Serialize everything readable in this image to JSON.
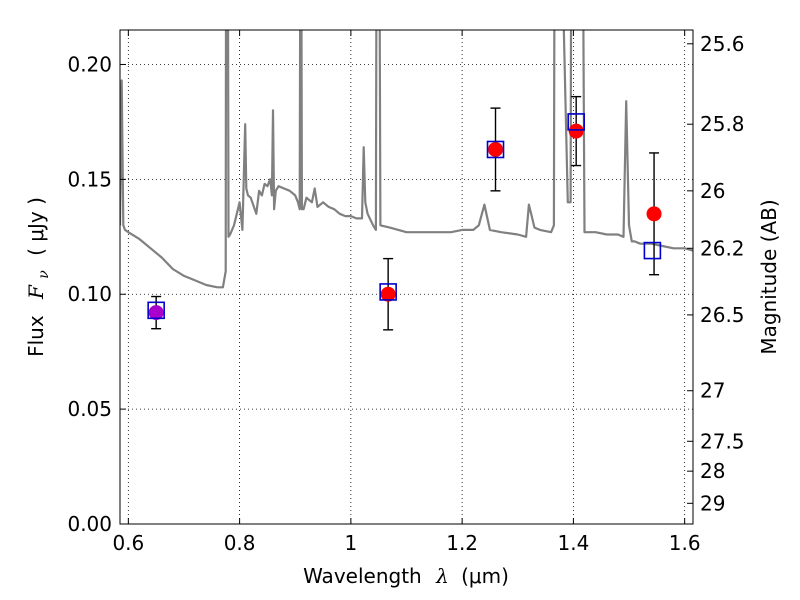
{
  "chart_data": {
    "type": "scatter",
    "xlabel_text": "Wavelength",
    "xlabel_symbol": "λ",
    "xlabel_unit": "(μm)",
    "ylabel_text": "Flux",
    "ylabel_symbol": "F",
    "ylabel_subscript": "ν",
    "ylabel_unit": "( μJy )",
    "y2label": "Magnitude (AB)",
    "xlim": [
      0.585,
      1.615
    ],
    "ylim": [
      0.0,
      0.215
    ],
    "grid": true,
    "x_ticks": [
      0.6,
      0.8,
      1.0,
      1.2,
      1.4,
      1.6
    ],
    "x_tick_labels": [
      "0.6",
      "0.8",
      "1",
      "1.2",
      "1.4",
      "1.6"
    ],
    "y_ticks": [
      0.0,
      0.05,
      0.1,
      0.15,
      0.2
    ],
    "y_tick_labels": [
      "0.00",
      "0.05",
      "0.10",
      "0.15",
      "0.20"
    ],
    "y2_ticks": [
      {
        "label": "25.6",
        "flux": 0.209
      },
      {
        "label": "25.8",
        "flux": 0.174
      },
      {
        "label": "26",
        "flux": 0.145
      },
      {
        "label": "26.2",
        "flux": 0.12
      },
      {
        "label": "26.5",
        "flux": 0.091
      },
      {
        "label": "27",
        "flux": 0.058
      },
      {
        "label": "27.5",
        "flux": 0.036
      },
      {
        "label": "28",
        "flux": 0.023
      },
      {
        "label": "29",
        "flux": 0.009
      }
    ],
    "spectrum": {
      "color": "#808080",
      "x": [
        0.585,
        0.588,
        0.591,
        0.594,
        0.6,
        0.62,
        0.64,
        0.66,
        0.68,
        0.7,
        0.72,
        0.74,
        0.76,
        0.77,
        0.775,
        0.776,
        0.778,
        0.78,
        0.783,
        0.79,
        0.8,
        0.805,
        0.81,
        0.812,
        0.815,
        0.82,
        0.83,
        0.835,
        0.84,
        0.845,
        0.85,
        0.855,
        0.858,
        0.86,
        0.862,
        0.865,
        0.87,
        0.88,
        0.89,
        0.9,
        0.905,
        0.908,
        0.91,
        0.912,
        0.915,
        0.92,
        0.93,
        0.935,
        0.94,
        0.95,
        0.96,
        0.97,
        0.98,
        0.99,
        1.0,
        1.01,
        1.02,
        1.023,
        1.026,
        1.03,
        1.04,
        1.045,
        1.047,
        1.05,
        1.053,
        1.07,
        1.1,
        1.12,
        1.15,
        1.18,
        1.2,
        1.22,
        1.23,
        1.24,
        1.25,
        1.27,
        1.3,
        1.315,
        1.32,
        1.33,
        1.34,
        1.36,
        1.365,
        1.367,
        1.37,
        1.39,
        1.395,
        1.397,
        1.4,
        1.402,
        1.41,
        1.415,
        1.42,
        1.425,
        1.43,
        1.44,
        1.46,
        1.48,
        1.49,
        1.495,
        1.5,
        1.505,
        1.51,
        1.52,
        1.54,
        1.56,
        1.58,
        1.6,
        1.615
      ],
      "y": [
        0.13,
        0.193,
        0.13,
        0.128,
        0.127,
        0.124,
        0.12,
        0.116,
        0.111,
        0.108,
        0.106,
        0.104,
        0.103,
        0.103,
        0.11,
        0.35,
        0.35,
        0.125,
        0.126,
        0.13,
        0.14,
        0.128,
        0.174,
        0.146,
        0.143,
        0.142,
        0.135,
        0.145,
        0.143,
        0.148,
        0.147,
        0.15,
        0.143,
        0.18,
        0.137,
        0.145,
        0.147,
        0.146,
        0.145,
        0.143,
        0.14,
        0.137,
        0.35,
        0.137,
        0.137,
        0.142,
        0.14,
        0.146,
        0.138,
        0.14,
        0.138,
        0.137,
        0.135,
        0.134,
        0.134,
        0.133,
        0.133,
        0.164,
        0.14,
        0.135,
        0.13,
        0.128,
        0.35,
        0.35,
        0.13,
        0.129,
        0.127,
        0.127,
        0.127,
        0.127,
        0.128,
        0.128,
        0.13,
        0.139,
        0.128,
        0.127,
        0.126,
        0.125,
        0.139,
        0.129,
        0.128,
        0.127,
        0.13,
        0.35,
        0.35,
        0.14,
        0.14,
        0.35,
        0.35,
        0.35,
        0.35,
        0.35,
        0.127,
        0.127,
        0.127,
        0.127,
        0.126,
        0.126,
        0.125,
        0.184,
        0.13,
        0.123,
        0.123,
        0.122,
        0.122,
        0.121,
        0.12,
        0.12,
        0.119
      ]
    },
    "series": [
      {
        "marker": "filled-circle",
        "color": "#ff0000",
        "points": [
          {
            "x": 0.65,
            "y": 0.092,
            "err": 0.007,
            "color": "#aa00cc"
          },
          {
            "x": 1.067,
            "y": 0.1,
            "err": 0.0155
          },
          {
            "x": 1.26,
            "y": 0.163,
            "err": 0.018
          },
          {
            "x": 1.405,
            "y": 0.171,
            "err": 0.015
          },
          {
            "x": 1.545,
            "y": 0.135,
            "err": 0.0265
          }
        ]
      },
      {
        "marker": "open-square",
        "color": "#0000cc",
        "points": [
          {
            "x": 0.65,
            "y": 0.093
          },
          {
            "x": 1.067,
            "y": 0.101
          },
          {
            "x": 1.26,
            "y": 0.163
          },
          {
            "x": 1.405,
            "y": 0.175
          },
          {
            "x": 1.542,
            "y": 0.119
          }
        ]
      }
    ]
  }
}
